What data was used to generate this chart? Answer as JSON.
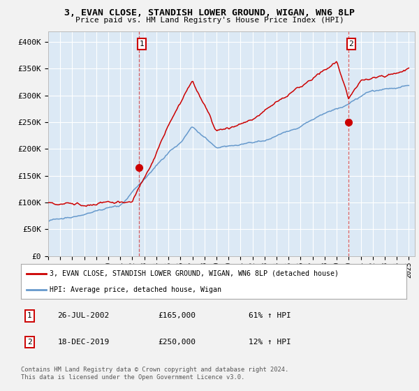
{
  "title": "3, EVAN CLOSE, STANDISH LOWER GROUND, WIGAN, WN6 8LP",
  "subtitle": "Price paid vs. HM Land Registry's House Price Index (HPI)",
  "ylim": [
    0,
    420000
  ],
  "yticks": [
    0,
    50000,
    100000,
    150000,
    200000,
    250000,
    300000,
    350000,
    400000
  ],
  "ytick_labels": [
    "£0",
    "£50K",
    "£100K",
    "£150K",
    "£200K",
    "£250K",
    "£300K",
    "£350K",
    "£400K"
  ],
  "bg_color": "#dce9f5",
  "grid_color": "#ffffff",
  "fig_bg_color": "#f2f2f2",
  "legend_label_red": "3, EVAN CLOSE, STANDISH LOWER GROUND, WIGAN, WN6 8LP (detached house)",
  "legend_label_blue": "HPI: Average price, detached house, Wigan",
  "t1_x": 2002.55,
  "t1_y": 165000,
  "t1_date": "26-JUL-2002",
  "t1_price": "£165,000",
  "t1_hpi": "61% ↑ HPI",
  "t2_x": 2019.96,
  "t2_y": 250000,
  "t2_date": "18-DEC-2019",
  "t2_price": "£250,000",
  "t2_hpi": "12% ↑ HPI",
  "footnote": "Contains HM Land Registry data © Crown copyright and database right 2024.\nThis data is licensed under the Open Government Licence v3.0.",
  "red_color": "#cc0000",
  "blue_color": "#6699cc",
  "xmin": 1995,
  "xmax": 2025.5
}
